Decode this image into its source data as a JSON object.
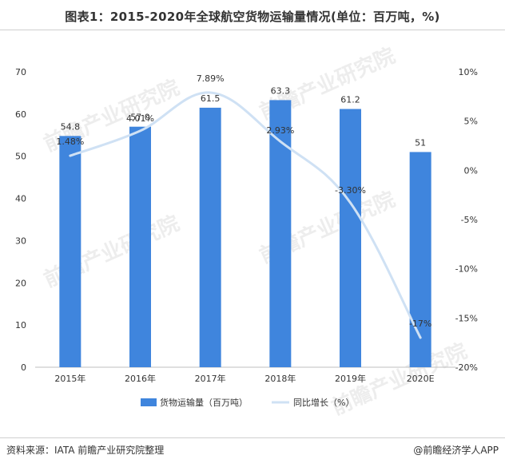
{
  "title": "图表1：2015-2020年全球航空货物运输量情况(单位：百万吨，%)",
  "source": "资料来源：IATA  前瞻产业研究院整理",
  "brand": "@前瞻经济学人APP",
  "watermark": "前瞻产业研究院",
  "colors": {
    "bar": "#3f85dd",
    "line": "#cfe1f4",
    "text": "#333333",
    "axis": "#bfbfbf"
  },
  "chart_data": {
    "type": "bar",
    "categories": [
      "2015年",
      "2016年",
      "2017年",
      "2018年",
      "2019年",
      "2020E"
    ],
    "series": [
      {
        "name": "货物运输量（百万吨）",
        "type": "bar",
        "axis": "left",
        "values": [
          54.8,
          57.0,
          61.5,
          63.3,
          61.2,
          51
        ],
        "labels": [
          "54.8",
          "57.0",
          "61.5",
          "63.3",
          "61.2",
          "51"
        ]
      },
      {
        "name": "同比增长（%）",
        "type": "line",
        "axis": "right",
        "values": [
          1.48,
          4.01,
          7.89,
          2.93,
          -3.3,
          -17
        ],
        "labels": [
          "1.48%",
          "4.01%",
          "7.89%",
          "2.93%",
          "-3.30%",
          "-17%"
        ]
      }
    ],
    "y_left": {
      "min": 0,
      "max": 70,
      "ticks": [
        "0",
        "10",
        "20",
        "30",
        "40",
        "50",
        "60",
        "70"
      ]
    },
    "y_right": {
      "min": -20,
      "max": 10,
      "ticks": [
        "-20%",
        "-15%",
        "-10%",
        "-5%",
        "0%",
        "5%",
        "10%"
      ]
    },
    "legend": {
      "position": "bottom"
    }
  }
}
